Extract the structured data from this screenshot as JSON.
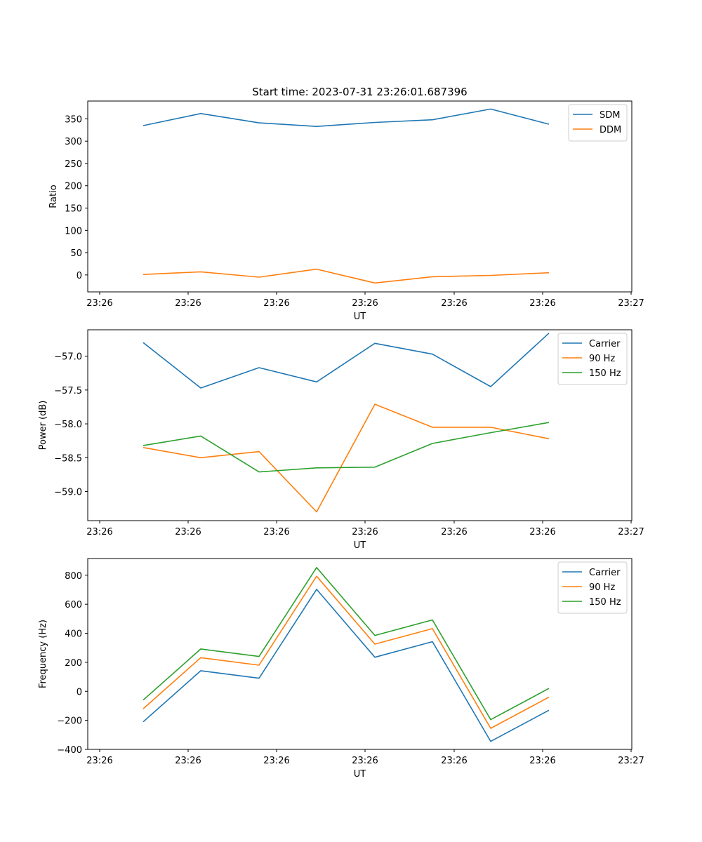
{
  "figure_title": "Start time: 2023-07-31 23:26:01.687396",
  "colors": {
    "blue": "#1f77b4",
    "orange": "#ff7f0e",
    "green": "#2ca02c"
  },
  "chart_data": [
    {
      "type": "line",
      "title": "Start time: 2023-07-31 23:26:01.687396",
      "xlabel": "UT",
      "ylabel": "Ratio",
      "x": [
        1,
        2,
        3,
        4,
        5,
        6,
        7,
        8
      ],
      "xlim": [
        0.8,
        9.2
      ],
      "xticks": [
        1,
        2,
        3,
        4,
        5,
        6,
        7,
        8
      ],
      "xtick_values": [
        0,
        1.5,
        3,
        4.5,
        6,
        7.5,
        9
      ],
      "xtick_labels": [
        "23:26",
        "23:26",
        "23:26",
        "23:26",
        "23:26",
        "23:26",
        "23:27"
      ],
      "ylim": [
        -38,
        390
      ],
      "yticks": [
        0,
        50,
        100,
        150,
        200,
        250,
        300,
        350
      ],
      "ytick_labels": [
        "0",
        "50",
        "100",
        "150",
        "200",
        "250",
        "300",
        "350"
      ],
      "legend_position": "top-right",
      "series": [
        {
          "name": "SDM",
          "color": "#1f77b4",
          "values": [
            335,
            362,
            341,
            333,
            342,
            348,
            372,
            338
          ]
        },
        {
          "name": "DDM",
          "color": "#ff7f0e",
          "values": [
            1,
            7,
            -5,
            13,
            -18,
            -4,
            -1,
            5
          ]
        }
      ]
    },
    {
      "type": "line",
      "title": "",
      "xlabel": "UT",
      "ylabel": "Power (dB)",
      "xlim": [
        0.8,
        9.2
      ],
      "xtick_values": [
        0,
        1.5,
        3,
        4.5,
        6,
        7.5,
        9
      ],
      "xtick_labels": [
        "23:26",
        "23:26",
        "23:26",
        "23:26",
        "23:26",
        "23:26",
        "23:27"
      ],
      "ylim": [
        -59.43,
        -56.61
      ],
      "yticks": [
        -59.0,
        -58.5,
        -58.0,
        -57.5,
        -57.0
      ],
      "ytick_labels": [
        "−59.0",
        "−58.5",
        "−58.0",
        "−57.5",
        "−57.0"
      ],
      "legend_position": "top-right",
      "series": [
        {
          "name": "Carrier",
          "color": "#1f77b4",
          "values": [
            -56.8,
            -57.47,
            -57.17,
            -57.38,
            -56.81,
            -56.97,
            -57.45,
            -56.66
          ]
        },
        {
          "name": "90 Hz",
          "color": "#ff7f0e",
          "values": [
            -58.35,
            -58.5,
            -58.41,
            -59.3,
            -57.71,
            -58.05,
            -58.05,
            -58.22
          ]
        },
        {
          "name": "150 Hz",
          "color": "#2ca02c",
          "values": [
            -58.32,
            -58.18,
            -58.71,
            -58.65,
            -58.64,
            -58.29,
            -58.13,
            -57.98
          ]
        }
      ]
    },
    {
      "type": "line",
      "title": "",
      "xlabel": "UT",
      "ylabel": "Frequency (Hz)",
      "xlim": [
        0.8,
        9.2
      ],
      "xtick_values": [
        0,
        1.5,
        3,
        4.5,
        6,
        7.5,
        9
      ],
      "xtick_labels": [
        "23:26",
        "23:26",
        "23:26",
        "23:26",
        "23:26",
        "23:26",
        "23:27"
      ],
      "ylim": [
        -400,
        915
      ],
      "yticks": [
        -400,
        -200,
        0,
        200,
        400,
        600,
        800
      ],
      "ytick_labels": [
        "−400",
        "−200",
        "0",
        "200",
        "400",
        "600",
        "800"
      ],
      "legend_position": "top-right",
      "series": [
        {
          "name": "Carrier",
          "color": "#1f77b4",
          "values": [
            -210,
            142,
            90,
            703,
            235,
            342,
            -345,
            -130
          ]
        },
        {
          "name": "90 Hz",
          "color": "#ff7f0e",
          "values": [
            -120,
            232,
            180,
            793,
            325,
            432,
            -255,
            -40
          ]
        },
        {
          "name": "150 Hz",
          "color": "#2ca02c",
          "values": [
            -60,
            292,
            240,
            853,
            385,
            492,
            -195,
            20
          ]
        }
      ]
    }
  ]
}
